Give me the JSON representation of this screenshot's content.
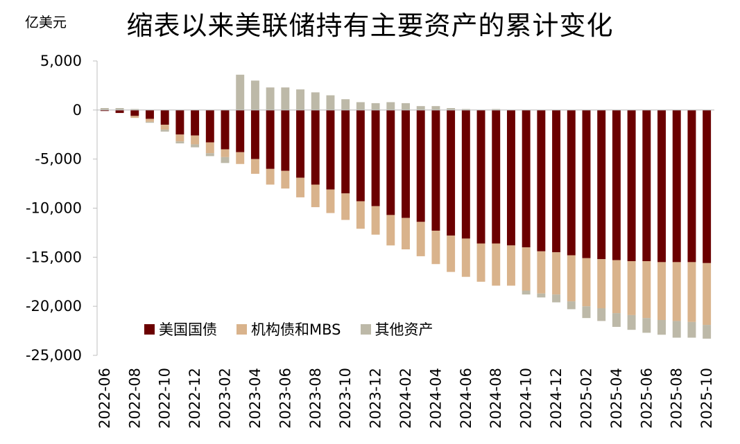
{
  "chart_data": {
    "type": "bar",
    "stacked": true,
    "title": "缩表以来美联储持有主要资产的累计变化",
    "unit_label": "亿美元",
    "ylim": [
      -25000,
      5000
    ],
    "yticks": [
      5000,
      0,
      -5000,
      -10000,
      -15000,
      -20000,
      -25000
    ],
    "ytick_labels": [
      "5,000",
      "0",
      "-5,000",
      "-10,000",
      "-15,000",
      "-20,000",
      "-25,000"
    ],
    "categories": [
      "2022-06",
      "2022-07",
      "2022-08",
      "2022-09",
      "2022-10",
      "2022-11",
      "2022-12",
      "2023-01",
      "2023-02",
      "2023-03",
      "2023-04",
      "2023-05",
      "2023-06",
      "2023-07",
      "2023-08",
      "2023-09",
      "2023-10",
      "2023-11",
      "2023-12",
      "2024-01",
      "2024-02",
      "2024-03",
      "2024-04",
      "2024-05",
      "2024-06",
      "2024-07",
      "2024-08",
      "2024-09",
      "2024-10",
      "2024-11",
      "2024-12",
      "2025-01",
      "2025-02",
      "2025-03",
      "2025-04",
      "2025-05",
      "2025-06",
      "2025-07",
      "2025-08",
      "2025-09",
      "2025-10"
    ],
    "xtick_labels": [
      "2022-06",
      "2022-08",
      "2022-10",
      "2022-12",
      "2023-02",
      "2023-04",
      "2023-06",
      "2023-08",
      "2023-10",
      "2023-12",
      "2024-02",
      "2024-04",
      "2024-06",
      "2024-08",
      "2024-10",
      "2024-12",
      "2025-02",
      "2025-04",
      "2025-06",
      "2025-08",
      "2025-10"
    ],
    "series": [
      {
        "name": "美国国债",
        "color": "#6b0000",
        "values": [
          -100,
          -300,
          -600,
          -900,
          -1500,
          -2500,
          -2600,
          -3300,
          -4000,
          -4300,
          -5000,
          -6000,
          -6200,
          -6900,
          -7600,
          -8100,
          -8500,
          -9300,
          -9800,
          -10700,
          -11000,
          -11400,
          -12300,
          -12800,
          -13100,
          -13600,
          -13600,
          -13800,
          -14000,
          -14400,
          -14500,
          -14800,
          -15100,
          -15200,
          -15300,
          -15400,
          -15400,
          -15500,
          -15500,
          -15500,
          -15600
        ]
      },
      {
        "name": "机构债和MBS",
        "color": "#d9b38c",
        "values": [
          0,
          0,
          -200,
          -300,
          -500,
          -700,
          -900,
          -1100,
          -800,
          -1200,
          -1500,
          -1600,
          -1800,
          -2000,
          -2300,
          -2400,
          -2700,
          -2800,
          -2900,
          -3100,
          -3200,
          -3500,
          -3400,
          -3700,
          -3900,
          -3900,
          -4300,
          -4100,
          -4400,
          -4300,
          -4300,
          -4700,
          -4900,
          -5000,
          -5400,
          -5500,
          -5800,
          -5900,
          -6000,
          -6100,
          -6300
        ]
      },
      {
        "name": "其他资产",
        "color": "#bdb9a8",
        "values": [
          200,
          200,
          100,
          -100,
          -200,
          -200,
          -300,
          -300,
          -600,
          3600,
          3000,
          2300,
          2300,
          2100,
          1800,
          1500,
          1100,
          800,
          700,
          800,
          700,
          400,
          400,
          200,
          100,
          0,
          100,
          0,
          -400,
          -400,
          -800,
          -800,
          -1200,
          -1300,
          -1400,
          -1500,
          -1500,
          -1500,
          -1700,
          -1600,
          -1400
        ]
      }
    ],
    "legend_position": "lower-left"
  }
}
